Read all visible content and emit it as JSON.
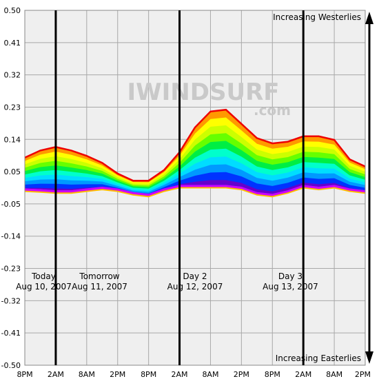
{
  "chart_data": {
    "type": "area",
    "title": "",
    "xlabel": "",
    "ylabel": "",
    "ylim": [
      -0.5,
      0.5
    ],
    "y_ticks": [
      "0.50",
      "0.41",
      "0.32",
      "0.23",
      "0.14",
      "0.05",
      "-0.05",
      "-0.14",
      "-0.23",
      "-0.32",
      "-0.41",
      "-0.50"
    ],
    "x_ticks": [
      "8PM",
      "2AM",
      "8AM",
      "2PM",
      "8PM",
      "2AM",
      "8AM",
      "2PM",
      "8PM",
      "2AM",
      "8AM",
      "2PM"
    ],
    "grid": true,
    "x_hours": [
      0,
      3,
      6,
      9,
      12,
      15,
      18,
      21,
      24,
      27,
      30,
      33,
      36,
      39,
      42,
      45,
      48,
      51,
      54,
      57,
      60,
      63,
      66
    ],
    "envelope": {
      "upper": [
        0.085,
        0.105,
        0.115,
        0.105,
        0.09,
        0.07,
        0.04,
        0.02,
        0.02,
        0.05,
        0.1,
        0.17,
        0.215,
        0.22,
        0.18,
        0.14,
        0.125,
        0.13,
        0.145,
        0.145,
        0.135,
        0.08,
        0.06
      ],
      "lower": [
        -0.01,
        -0.012,
        -0.015,
        -0.015,
        -0.01,
        -0.005,
        -0.01,
        -0.02,
        -0.025,
        -0.01,
        0.0,
        0.0,
        0.0,
        0.0,
        -0.005,
        -0.02,
        -0.025,
        -0.015,
        0.0,
        -0.005,
        0.0,
        -0.01,
        -0.015
      ]
    },
    "bands": [
      0.0,
      0.1,
      0.2,
      0.3,
      0.4,
      0.5,
      0.6,
      0.7,
      0.8,
      0.9,
      1.0
    ],
    "band_colors": [
      "#ff9900",
      "#ffff00",
      "#ccff00",
      "#66ff00",
      "#00ee44",
      "#00ffcc",
      "#00ddff",
      "#0099ff",
      "#0033ff",
      "#6600cc",
      "#cc00ff"
    ],
    "edge_colors": {
      "top": "#ee0000",
      "bottom": "#ffbb00"
    },
    "day_markers": [
      {
        "label": "Today",
        "date": "Aug 10, 2007",
        "x_hour": 1.0
      },
      {
        "label": "Tomorrow",
        "date": "Aug 11, 2007",
        "x_hour": 14.5
      },
      {
        "label": "Day 2",
        "date": "Aug 12, 2007",
        "x_hour": 33.0
      },
      {
        "label": "Day 3",
        "date": "Aug 13, 2007",
        "x_hour": 51.5
      }
    ],
    "midnight_lines_hours": [
      6,
      30,
      54
    ],
    "annotations": {
      "top": "Increasing Westerlies",
      "bottom": "Increasing Easterlies"
    },
    "arrow_color": "#000000"
  },
  "watermark": {
    "brand": "IWINDSURF",
    "domain": ".com"
  }
}
